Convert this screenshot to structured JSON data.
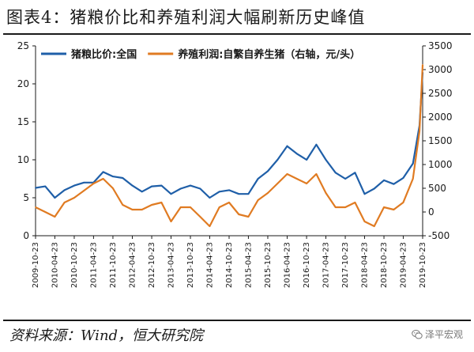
{
  "title": "图表4：猪粮价比和养殖利润大幅刷新历史峰值",
  "source": "资料来源：Wind，恒大研究院",
  "watermark": "泽平宏观",
  "watermark_icon": "wechat-icon",
  "colors": {
    "ratio": "#1f5fa8",
    "profit": "#e07b22",
    "text": "#1a1a1a",
    "axis": "#1a1a1a"
  },
  "chart_data": {
    "type": "line",
    "title": "",
    "xlabel": "",
    "ylabel_left": "",
    "ylabel_right": "",
    "x_ticks": [
      "2009-10-23",
      "2010-04-23",
      "2010-10-23",
      "2011-04-23",
      "2011-10-23",
      "2012-04-23",
      "2012-10-23",
      "2013-04-23",
      "2013-10-23",
      "2014-04-23",
      "2014-10-23",
      "2015-04-23",
      "2015-10-23",
      "2016-04-23",
      "2016-10-23",
      "2017-04-23",
      "2017-10-23",
      "2018-04-23",
      "2018-10-23",
      "2019-04-23",
      "2019-10-23"
    ],
    "y_left": {
      "min": 0,
      "max": 25,
      "ticks": [
        0,
        5,
        10,
        15,
        20,
        25
      ]
    },
    "y_right": {
      "min": -500,
      "max": 3500,
      "ticks": [
        -500,
        0,
        500,
        1000,
        1500,
        2000,
        2500,
        3000,
        3500
      ]
    },
    "legend_position": "top",
    "series": [
      {
        "name": "猪粮比价:全国",
        "axis": "left",
        "color": "#1f5fa8",
        "x": [
          "2009-10-23",
          "2010-01-23",
          "2010-04-23",
          "2010-07-23",
          "2010-10-23",
          "2011-01-23",
          "2011-04-23",
          "2011-07-23",
          "2011-10-23",
          "2012-01-23",
          "2012-04-23",
          "2012-07-23",
          "2012-10-23",
          "2013-01-23",
          "2013-04-23",
          "2013-07-23",
          "2013-10-23",
          "2014-01-23",
          "2014-04-23",
          "2014-07-23",
          "2014-10-23",
          "2015-01-23",
          "2015-04-23",
          "2015-07-23",
          "2015-10-23",
          "2016-01-23",
          "2016-04-23",
          "2016-07-23",
          "2016-10-23",
          "2017-01-23",
          "2017-04-23",
          "2017-07-23",
          "2017-10-23",
          "2018-01-23",
          "2018-04-23",
          "2018-07-23",
          "2018-10-23",
          "2019-01-23",
          "2019-04-23",
          "2019-07-23",
          "2019-09-23",
          "2019-10-23"
        ],
        "values": [
          6.3,
          6.5,
          5.0,
          6.0,
          6.6,
          7.0,
          7.0,
          8.4,
          7.8,
          7.6,
          6.6,
          5.8,
          6.5,
          6.6,
          5.5,
          6.2,
          6.6,
          6.2,
          5.0,
          5.8,
          6.0,
          5.5,
          5.5,
          7.5,
          8.5,
          10.0,
          11.8,
          10.8,
          10.0,
          12.0,
          10.0,
          8.3,
          7.5,
          8.3,
          5.5,
          6.2,
          7.3,
          6.8,
          7.6,
          9.5,
          14.5,
          21.5
        ]
      },
      {
        "name": "养殖利润:自繁自养生猪（右轴，元/头）",
        "axis": "right",
        "color": "#e07b22",
        "x": [
          "2009-10-23",
          "2010-01-23",
          "2010-04-23",
          "2010-07-23",
          "2010-10-23",
          "2011-01-23",
          "2011-04-23",
          "2011-07-23",
          "2011-10-23",
          "2012-01-23",
          "2012-04-23",
          "2012-07-23",
          "2012-10-23",
          "2013-01-23",
          "2013-04-23",
          "2013-07-23",
          "2013-10-23",
          "2014-01-23",
          "2014-04-23",
          "2014-07-23",
          "2014-10-23",
          "2015-01-23",
          "2015-04-23",
          "2015-07-23",
          "2015-10-23",
          "2016-01-23",
          "2016-04-23",
          "2016-07-23",
          "2016-10-23",
          "2017-01-23",
          "2017-04-23",
          "2017-07-23",
          "2017-10-23",
          "2018-01-23",
          "2018-04-23",
          "2018-07-23",
          "2018-10-23",
          "2019-01-23",
          "2019-04-23",
          "2019-07-23",
          "2019-09-23",
          "2019-10-23"
        ],
        "values": [
          100,
          0,
          -100,
          200,
          300,
          450,
          600,
          700,
          500,
          150,
          50,
          50,
          150,
          200,
          -200,
          100,
          100,
          -100,
          -300,
          100,
          200,
          -50,
          -100,
          250,
          400,
          600,
          800,
          700,
          600,
          800,
          400,
          100,
          100,
          200,
          -200,
          -300,
          100,
          50,
          200,
          700,
          1700,
          3100
        ]
      }
    ]
  }
}
